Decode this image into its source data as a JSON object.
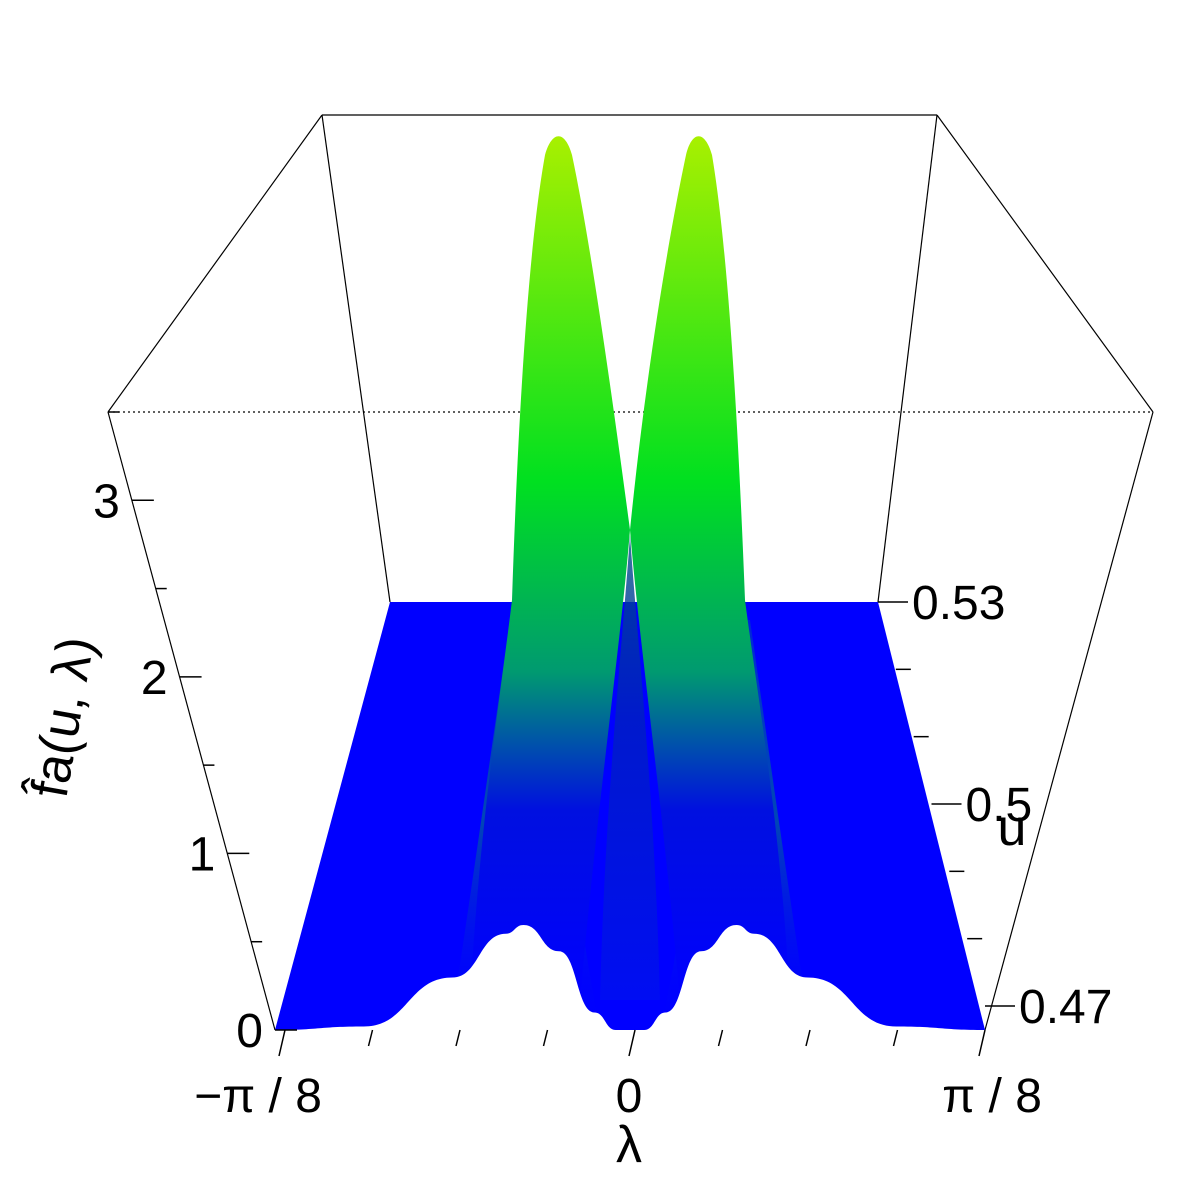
{
  "chart_data": {
    "type": "surface",
    "title": "",
    "xlabel": "λ",
    "ylabel": "u",
    "zlabel": "f̂a(u, λ)",
    "x_range_label": [
      "−π / 8",
      "π / 8"
    ],
    "x_ticks": [
      "−π / 8",
      "0",
      "π / 8"
    ],
    "x_range": [
      -0.3927,
      0.3927
    ],
    "y_ticks": [
      "0.47",
      "0.5",
      "0.53"
    ],
    "y_range": [
      0.47,
      0.53
    ],
    "z_ticks": [
      "0",
      "1",
      "2",
      "3"
    ],
    "z_range": [
      0,
      3.5
    ],
    "colormap": [
      "#0000ff",
      "#00a060",
      "#00ff00",
      "#aaff00"
    ],
    "surface_profile_at_u_min": {
      "lambda_frac": [
        -1.0,
        -0.75,
        -0.5,
        -0.35,
        -0.3,
        -0.2,
        -0.1,
        -0.04,
        0.0,
        0.04,
        0.1,
        0.2,
        0.3,
        0.35,
        0.5,
        0.75,
        1.0
      ],
      "value": [
        0.0,
        0.02,
        0.3,
        0.55,
        0.6,
        0.45,
        0.1,
        0.0,
        0.0,
        0.0,
        0.1,
        0.45,
        0.6,
        0.55,
        0.3,
        0.02,
        0.0
      ]
    },
    "peaks": [
      {
        "lambda_frac": -0.2,
        "u": 0.53,
        "value": 3.5
      },
      {
        "lambda_frac": 0.2,
        "u": 0.53,
        "value": 3.5
      }
    ]
  }
}
